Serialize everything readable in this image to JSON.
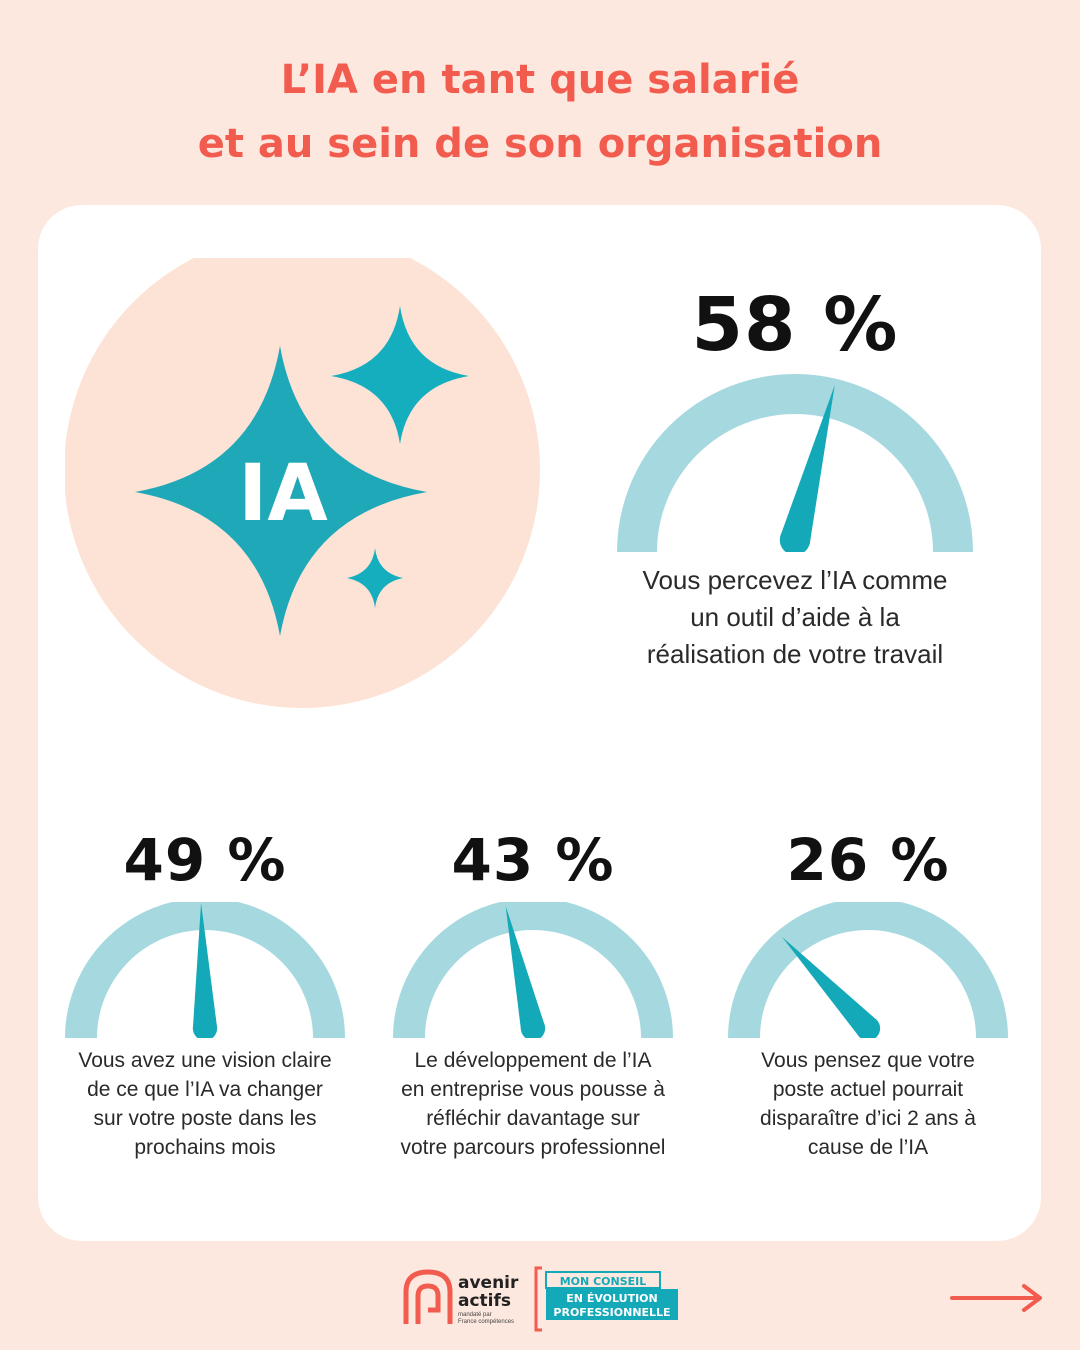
{
  "title": {
    "line1": "L’IA en tant que salarié",
    "line2": "et au sein de son organisation"
  },
  "hero": {
    "label": "IA"
  },
  "colors": {
    "accent": "#f25c4f",
    "teal": "#14a9b8",
    "gauge_track": "#a6d9df",
    "background": "#fde8df",
    "hero_circle": "#fde8df"
  },
  "stats": [
    {
      "percent_label": "58 %",
      "value": 58,
      "description": [
        "Vous percevez l’IA comme",
        "un outil d’aide à la",
        "réalisation de votre travail"
      ]
    },
    {
      "percent_label": "49 %",
      "value": 49,
      "description": [
        "Vous avez une vision claire",
        "de ce que l’IA va changer",
        "sur votre poste dans les",
        "prochains mois"
      ]
    },
    {
      "percent_label": "43 %",
      "value": 43,
      "description": [
        "Le développement de l’IA",
        "en entreprise vous pousse à",
        "réfléchir davantage sur",
        "votre parcours professionnel"
      ]
    },
    {
      "percent_label": "26 %",
      "value": 26,
      "description": [
        "Vous pensez que votre",
        "poste actuel pourrait",
        "disparaître d’ici 2 ans à",
        "cause de l’IA"
      ]
    }
  ],
  "footer": {
    "brand_line1": "avenir",
    "brand_line2": "actifs",
    "brand_sub1": "mandaté par",
    "brand_sub2": "France compétences",
    "program_line1": "MON CONSEIL",
    "program_line2": "EN ÉVOLUTION",
    "program_line3": "PROFESSIONNELLE",
    "next_icon": "arrow-right-icon"
  }
}
